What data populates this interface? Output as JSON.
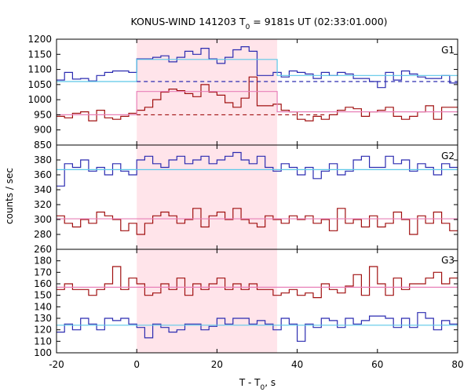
{
  "chart_data": {
    "type": "line",
    "title": "KONUS-WIND 141203 T",
    "title_sub": "0",
    "title_rest": " = 9181s UT (02:33:01.000)",
    "xlabel": "T - T",
    "xlabel_sub": "0",
    "xlabel_rest": ", s",
    "ylabel": "counts / sec",
    "xlim": [
      -20,
      80
    ],
    "xticks": [
      -20,
      0,
      20,
      40,
      60,
      80
    ],
    "highlight_interval": [
      0,
      35
    ],
    "colors": {
      "blue": "#2b2bb0",
      "red": "#a01010",
      "cyan": "#5cc8e8",
      "pink": "#e880b8",
      "band": "#ffe4ea"
    },
    "panels": [
      {
        "name": "G1",
        "ylim": [
          850,
          1200
        ],
        "yticks": [
          850,
          900,
          950,
          1000,
          1050,
          1100,
          1150,
          1200
        ],
        "series": [
          {
            "color": "blue",
            "style": "step",
            "x0": -20,
            "dx": 2,
            "values": [
              1065,
              1090,
              1068,
              1070,
              1062,
              1080,
              1090,
              1095,
              1095,
              1090,
              1135,
              1135,
              1140,
              1145,
              1125,
              1140,
              1160,
              1150,
              1170,
              1135,
              1120,
              1140,
              1165,
              1175,
              1160,
              1080,
              1080,
              1090,
              1075,
              1095,
              1090,
              1085,
              1070,
              1090,
              1080,
              1090,
              1085,
              1070,
              1070,
              1060,
              1040,
              1090,
              1065,
              1095,
              1085,
              1075,
              1070,
              1070,
              1080,
              1055
            ]
          },
          {
            "color": "red",
            "style": "step",
            "x0": -20,
            "dx": 2,
            "values": [
              945,
              940,
              955,
              960,
              930,
              965,
              940,
              935,
              945,
              955,
              965,
              975,
              1000,
              1025,
              1035,
              1030,
              1020,
              1010,
              1050,
              1025,
              1015,
              990,
              975,
              1005,
              1075,
              980,
              980,
              985,
              965,
              960,
              935,
              930,
              945,
              935,
              950,
              965,
              975,
              970,
              945,
              960,
              965,
              975,
              945,
              935,
              945,
              960,
              980,
              935,
              975,
              975
            ]
          },
          {
            "color": "cyan",
            "style": "step",
            "x0": -20,
            "values": [
              1060,
              1133,
              1080
            ],
            "edges": [
              0,
              35,
              80
            ]
          },
          {
            "color": "pink",
            "style": "step",
            "x0": -20,
            "values": [
              950,
              1027,
              960
            ],
            "edges": [
              0,
              35,
              80
            ]
          },
          {
            "color": "blue",
            "style": "dashed",
            "x": [
              0,
              80
            ],
            "y": [
              1060,
              1060
            ]
          },
          {
            "color": "red",
            "style": "dashed",
            "x": [
              0,
              47
            ],
            "y": [
              950,
              950
            ]
          }
        ]
      },
      {
        "name": "G2",
        "ylim": [
          260,
          400
        ],
        "yticks": [
          260,
          280,
          300,
          320,
          340,
          360,
          380
        ],
        "series": [
          {
            "color": "blue",
            "style": "step",
            "x0": -20,
            "dx": 2,
            "values": [
              345,
              375,
              370,
              380,
              365,
              370,
              360,
              375,
              365,
              360,
              380,
              385,
              375,
              370,
              380,
              385,
              375,
              380,
              385,
              375,
              380,
              385,
              390,
              380,
              375,
              385,
              370,
              365,
              375,
              370,
              360,
              370,
              355,
              365,
              375,
              360,
              365,
              380,
              385,
              370,
              370,
              385,
              375,
              380,
              365,
              375,
              370,
              360,
              375,
              370
            ]
          },
          {
            "color": "red",
            "style": "step",
            "x0": -20,
            "dx": 2,
            "values": [
              305,
              295,
              290,
              300,
              295,
              310,
              305,
              300,
              285,
              295,
              280,
              295,
              305,
              310,
              305,
              295,
              300,
              315,
              290,
              305,
              310,
              300,
              315,
              300,
              295,
              290,
              305,
              300,
              295,
              305,
              300,
              305,
              295,
              300,
              285,
              315,
              295,
              300,
              290,
              305,
              290,
              295,
              310,
              300,
              280,
              305,
              295,
              310,
              295,
              285
            ]
          },
          {
            "color": "cyan",
            "style": "line",
            "x": [
              -20,
              80
            ],
            "y": [
              367,
              367
            ]
          },
          {
            "color": "pink",
            "style": "line",
            "x": [
              -20,
              80
            ],
            "y": [
              301,
              301
            ]
          }
        ]
      },
      {
        "name": "G3",
        "ylim": [
          100,
          190
        ],
        "yticks": [
          100,
          110,
          120,
          130,
          140,
          150,
          160,
          170,
          180
        ],
        "series": [
          {
            "color": "red",
            "style": "step",
            "x0": -20,
            "dx": 2,
            "values": [
              155,
              160,
              155,
              155,
              150,
              155,
              160,
              175,
              155,
              165,
              160,
              150,
              152,
              160,
              155,
              165,
              150,
              160,
              155,
              160,
              165,
              155,
              160,
              155,
              160,
              155,
              155,
              150,
              152,
              155,
              150,
              152,
              148,
              160,
              155,
              152,
              158,
              168,
              150,
              175,
              160,
              150,
              165,
              155,
              160,
              160,
              165,
              170,
              160,
              165
            ]
          },
          {
            "color": "blue",
            "style": "step",
            "x0": -20,
            "dx": 2,
            "values": [
              118,
              125,
              120,
              130,
              125,
              120,
              130,
              128,
              130,
              125,
              122,
              113,
              125,
              122,
              118,
              120,
              125,
              125,
              120,
              123,
              130,
              125,
              130,
              130,
              125,
              128,
              125,
              120,
              130,
              125,
              110,
              125,
              122,
              130,
              128,
              122,
              130,
              125,
              128,
              132,
              132,
              130,
              122,
              130,
              122,
              135,
              130,
              120,
              128,
              125
            ]
          },
          {
            "color": "pink",
            "style": "line",
            "x": [
              -20,
              80
            ],
            "y": [
              157,
              157
            ]
          },
          {
            "color": "cyan",
            "style": "line",
            "x": [
              -20,
              80
            ],
            "y": [
              124,
              124
            ]
          }
        ]
      }
    ]
  }
}
